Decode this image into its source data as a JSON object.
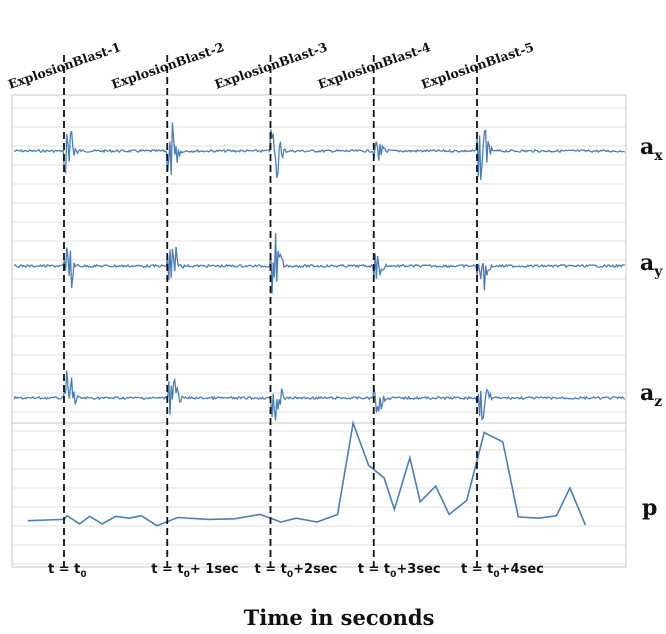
{
  "chart_data": {
    "type": "line",
    "title": "",
    "xlabel": "Time in seconds",
    "ylabel": "",
    "grid": true,
    "events": [
      {
        "label": "ExplosionBlast-1",
        "time_text": "t = t",
        "time_sub": "0",
        "time_suffix": ""
      },
      {
        "label": "ExplosionBlast-2",
        "time_text": "t = t",
        "time_sub": "0",
        "time_suffix": "+ 1sec"
      },
      {
        "label": "ExplosionBlast-3",
        "time_text": "t = t",
        "time_sub": "0",
        "time_suffix": "+2sec"
      },
      {
        "label": "ExplosionBlast-4",
        "time_text": "t = t",
        "time_sub": "0",
        "time_suffix": "+3sec"
      },
      {
        "label": "ExplosionBlast-5",
        "time_text": "t = t",
        "time_sub": "0",
        "time_suffix": "+4sec"
      }
    ],
    "accel_series": [
      {
        "name": "a",
        "sub": "x",
        "burst_amplitude": [
          1.0,
          1.0,
          1.0,
          0.35,
          1.0
        ]
      },
      {
        "name": "a",
        "sub": "y",
        "burst_amplitude": [
          1.0,
          1.0,
          1.0,
          0.45,
          1.0
        ]
      },
      {
        "name": "a",
        "sub": "z",
        "burst_amplitude": [
          0.9,
          0.9,
          0.9,
          0.5,
          0.8
        ]
      }
    ],
    "p_series": {
      "name": "p",
      "x": [
        0,
        0.35,
        0.38,
        0.5,
        0.6,
        0.72,
        0.85,
        0.98,
        1.1,
        1.25,
        1.45,
        1.75,
        2.0,
        2.25,
        2.45,
        2.6,
        2.8,
        3.0,
        3.15,
        3.3,
        3.45,
        3.55,
        3.7,
        3.8,
        3.95,
        4.08,
        4.25,
        4.42,
        4.6,
        4.75,
        4.95,
        5.12,
        5.25,
        5.4
      ],
      "y": [
        0.1,
        0.12,
        0.18,
        0.05,
        0.17,
        0.05,
        0.17,
        0.14,
        0.18,
        0.02,
        0.15,
        0.12,
        0.13,
        0.2,
        0.08,
        0.14,
        0.08,
        0.2,
        1.65,
        0.98,
        0.78,
        0.28,
        1.1,
        0.4,
        0.65,
        0.2,
        0.42,
        1.5,
        1.35,
        0.16,
        0.14,
        0.18,
        0.62,
        0.03
      ]
    }
  }
}
